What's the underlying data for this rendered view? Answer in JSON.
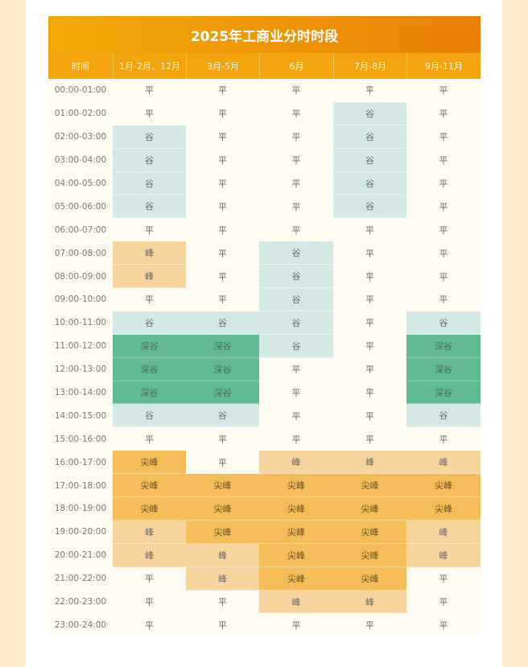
{
  "title": "2025年工商业分时时段",
  "headers": [
    "时间",
    "1月-2月、12月",
    "3月-5月",
    "6月",
    "7月-8月",
    "9月-11月"
  ],
  "colors": {
    "平": "#fffdf1",
    "谷": "#d3e9e6",
    "深谷": "#62ba92",
    "峰": "#f7d49d",
    "尖峰": "#f4bd59",
    "title": "#f09a05"
  },
  "rows": [
    {
      "time": "00:00-01:00",
      "cells": [
        "平",
        "平",
        "平",
        "平",
        "平"
      ]
    },
    {
      "time": "01:00-02:00",
      "cells": [
        "平",
        "平",
        "平",
        "谷",
        "平"
      ]
    },
    {
      "time": "02:00-03:00",
      "cells": [
        "谷",
        "平",
        "平",
        "谷",
        "平"
      ]
    },
    {
      "time": "03:00-04:00",
      "cells": [
        "谷",
        "平",
        "平",
        "谷",
        "平"
      ]
    },
    {
      "time": "04:00-05:00",
      "cells": [
        "谷",
        "平",
        "平",
        "谷",
        "平"
      ]
    },
    {
      "time": "05:00-06:00",
      "cells": [
        "谷",
        "平",
        "平",
        "谷",
        "平"
      ]
    },
    {
      "time": "06:00-07:00",
      "cells": [
        "平",
        "平",
        "平",
        "平",
        "平"
      ]
    },
    {
      "time": "07:00-08:00",
      "cells": [
        "峰",
        "平",
        "谷",
        "平",
        "平"
      ]
    },
    {
      "time": "08:00-09:00",
      "cells": [
        "峰",
        "平",
        "谷",
        "平",
        "平"
      ]
    },
    {
      "time": "09:00-10:00",
      "cells": [
        "平",
        "平",
        "谷",
        "平",
        "平"
      ]
    },
    {
      "time": "10:00-11:00",
      "cells": [
        "谷",
        "谷",
        "谷",
        "平",
        "谷"
      ]
    },
    {
      "time": "11:00-12:00",
      "cells": [
        "深谷",
        "深谷",
        "谷",
        "平",
        "深谷"
      ]
    },
    {
      "time": "12:00-13:00",
      "cells": [
        "深谷",
        "深谷",
        "平",
        "平",
        "深谷"
      ]
    },
    {
      "time": "13:00-14:00",
      "cells": [
        "深谷",
        "深谷",
        "平",
        "平",
        "深谷"
      ]
    },
    {
      "time": "14:00-15:00",
      "cells": [
        "谷",
        "谷",
        "平",
        "平",
        "谷"
      ]
    },
    {
      "time": "15:00-16:00",
      "cells": [
        "平",
        "平",
        "平",
        "平",
        "平"
      ]
    },
    {
      "time": "16:00-17:00",
      "cells": [
        "尖峰",
        "平",
        "峰",
        "峰",
        "峰"
      ]
    },
    {
      "time": "17:00-18:00",
      "cells": [
        "尖峰",
        "尖峰",
        "尖峰",
        "尖峰",
        "尖峰"
      ]
    },
    {
      "time": "18:00-19:00",
      "cells": [
        "尖峰",
        "尖峰",
        "尖峰",
        "尖峰",
        "尖峰"
      ]
    },
    {
      "time": "19:00-20:00",
      "cells": [
        "峰",
        "尖峰",
        "尖峰",
        "尖峰",
        "峰"
      ]
    },
    {
      "time": "20:00-21:00",
      "cells": [
        "峰",
        "峰",
        "尖峰",
        "尖峰",
        "峰"
      ]
    },
    {
      "time": "21:00-22:00",
      "cells": [
        "平",
        "峰",
        "尖峰",
        "尖峰",
        "平"
      ]
    },
    {
      "time": "22:00-23:00",
      "cells": [
        "平",
        "平",
        "峰",
        "峰",
        "平"
      ]
    },
    {
      "time": "23:00-24:00",
      "cells": [
        "平",
        "平",
        "平",
        "平",
        "平"
      ]
    }
  ]
}
